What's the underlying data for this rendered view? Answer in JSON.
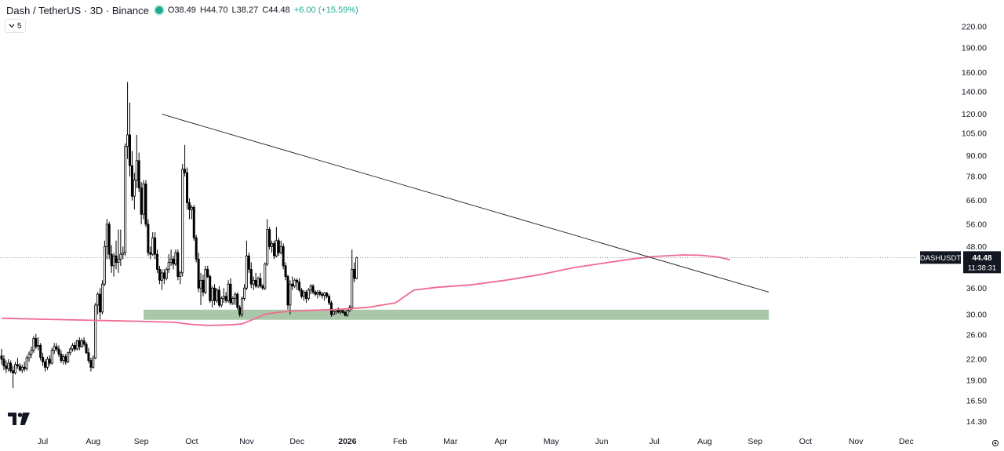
{
  "header": {
    "symbol": "Dash / TetherUS · 3D · Binance",
    "open": "O38.49",
    "high": "H44.70",
    "low": "L38.27",
    "close": "C44.48",
    "change": "+6.00 (+15.59%)",
    "status_color": "#22ab94"
  },
  "collapse_button": {
    "label": "5",
    "icon": "chevron-down-icon"
  },
  "price_label": {
    "symbol": "DASHUSDT",
    "price": "44.48",
    "countdown": "11:38:31"
  },
  "colors": {
    "up": "#ffffff",
    "down": "#000000",
    "ma": "#f06a8e",
    "support_zone": "#9bbd9a",
    "trendline": "#1e1e1e"
  },
  "chart_data": {
    "type": "candlestick",
    "y_scale": "log",
    "ylim": [
      13.2,
      240
    ],
    "y_ticks": [
      "14.30",
      "16.50",
      "19.00",
      "22.00",
      "26.00",
      "30.00",
      "36.00",
      "48.00",
      "56.00",
      "66.00",
      "78.00",
      "90.00",
      "105.00",
      "120.00",
      "140.00",
      "160.00",
      "190.00",
      "220.00"
    ],
    "x_ticks": [
      "Jul",
      "Aug",
      "Sep",
      "Oct",
      "Nov",
      "Dec",
      "2026",
      "Feb",
      "Mar",
      "Apr",
      "May",
      "Jun",
      "Jul",
      "Aug",
      "Sep",
      "Oct",
      "Nov",
      "Dec"
    ],
    "x_tick_index": [
      18,
      40,
      61,
      83,
      107,
      129,
      151,
      174,
      196,
      218,
      240,
      262,
      285,
      307,
      329,
      351,
      373,
      395
    ],
    "candles": [
      [
        22.5,
        23.6,
        21.2,
        22.0
      ],
      [
        22.0,
        22.6,
        20.4,
        21.0
      ],
      [
        21.0,
        21.8,
        20.0,
        20.6
      ],
      [
        20.6,
        22.0,
        20.2,
        21.4
      ],
      [
        21.4,
        21.8,
        20.0,
        20.3
      ],
      [
        20.3,
        21.0,
        18.0,
        20.0
      ],
      [
        20.0,
        21.6,
        19.8,
        21.2
      ],
      [
        21.2,
        22.2,
        20.6,
        21.0
      ],
      [
        21.0,
        21.4,
        20.2,
        20.4
      ],
      [
        20.4,
        21.2,
        20.0,
        20.8
      ],
      [
        20.8,
        21.6,
        20.2,
        20.6
      ],
      [
        20.6,
        22.5,
        20.3,
        22.2
      ],
      [
        22.2,
        23.2,
        21.6,
        22.8
      ],
      [
        22.8,
        24.0,
        22.2,
        23.4
      ],
      [
        23.4,
        25.8,
        23.0,
        25.4
      ],
      [
        25.4,
        26.2,
        23.6,
        24.0
      ],
      [
        24.0,
        25.6,
        23.4,
        24.2
      ],
      [
        24.2,
        24.6,
        21.8,
        22.3
      ],
      [
        22.3,
        23.0,
        21.0,
        21.6
      ],
      [
        21.6,
        22.0,
        20.2,
        20.8
      ],
      [
        20.8,
        22.4,
        20.4,
        22.0
      ],
      [
        22.0,
        22.6,
        21.0,
        21.4
      ],
      [
        21.4,
        23.8,
        21.2,
        23.4
      ],
      [
        23.4,
        24.6,
        22.8,
        24.0
      ],
      [
        24.0,
        24.6,
        23.2,
        23.6
      ],
      [
        23.6,
        24.2,
        22.4,
        22.8
      ],
      [
        22.8,
        23.4,
        21.4,
        21.8
      ],
      [
        21.8,
        22.8,
        21.2,
        22.4
      ],
      [
        22.4,
        22.8,
        21.2,
        21.6
      ],
      [
        21.6,
        23.2,
        21.4,
        23.0
      ],
      [
        23.0,
        24.0,
        22.6,
        23.6
      ],
      [
        23.6,
        24.6,
        23.2,
        24.2
      ],
      [
        24.2,
        24.8,
        23.2,
        23.6
      ],
      [
        23.6,
        25.2,
        23.4,
        25.0
      ],
      [
        25.0,
        25.6,
        23.4,
        24.0
      ],
      [
        24.0,
        25.4,
        23.8,
        25.0
      ],
      [
        25.0,
        25.6,
        24.0,
        24.4
      ],
      [
        24.4,
        24.8,
        22.8,
        23.0
      ],
      [
        23.0,
        23.8,
        21.4,
        21.8
      ],
      [
        21.8,
        22.2,
        20.2,
        20.8
      ],
      [
        20.8,
        22.6,
        20.6,
        22.2
      ],
      [
        22.2,
        32.5,
        22.0,
        32.0
      ],
      [
        32.0,
        35.0,
        30.0,
        34.5
      ],
      [
        34.5,
        36.0,
        29.0,
        30.5
      ],
      [
        30.5,
        38.0,
        30.0,
        37.0
      ],
      [
        37.0,
        50.0,
        36.5,
        48.0
      ],
      [
        48.0,
        58.0,
        44.0,
        56.0
      ],
      [
        56.0,
        57.0,
        44.0,
        45.5
      ],
      [
        45.5,
        48.5,
        40.0,
        42.0
      ],
      [
        42.0,
        46.0,
        39.0,
        45.0
      ],
      [
        45.0,
        50.0,
        41.0,
        43.0
      ],
      [
        43.0,
        54.0,
        40.0,
        44.0
      ],
      [
        44.0,
        54.0,
        42.0,
        45.5
      ],
      [
        45.5,
        48.0,
        44.0,
        46.0
      ],
      [
        46.0,
        98.0,
        45.0,
        96.0
      ],
      [
        96.0,
        150.0,
        88.0,
        104.0
      ],
      [
        104.0,
        130.0,
        78.0,
        84.0
      ],
      [
        84.0,
        93.0,
        66.0,
        68.0
      ],
      [
        68.0,
        80.0,
        62.0,
        76.0
      ],
      [
        76.0,
        104.0,
        72.0,
        87.0
      ],
      [
        87.0,
        92.0,
        70.0,
        72.0
      ],
      [
        72.0,
        75.0,
        56.0,
        60.0
      ],
      [
        60.0,
        76.0,
        58.0,
        74.0
      ],
      [
        74.0,
        76.0,
        55.0,
        56.0
      ],
      [
        56.0,
        58.0,
        45.0,
        46.0
      ],
      [
        46.0,
        48.0,
        44.0,
        45.5
      ],
      [
        45.5,
        53.0,
        45.0,
        51.0
      ],
      [
        51.0,
        53.0,
        44.0,
        45.5
      ],
      [
        45.5,
        47.0,
        40.0,
        41.0
      ],
      [
        41.0,
        42.0,
        37.0,
        38.0
      ],
      [
        38.0,
        41.0,
        35.5,
        40.0
      ],
      [
        40.0,
        41.0,
        37.0,
        38.5
      ],
      [
        38.5,
        41.5,
        38.0,
        41.0
      ],
      [
        41.0,
        45.5,
        40.0,
        43.0
      ],
      [
        43.0,
        47.0,
        42.0,
        44.0
      ],
      [
        44.0,
        45.0,
        41.0,
        42.5
      ],
      [
        42.5,
        47.0,
        42.0,
        46.0
      ],
      [
        46.0,
        47.0,
        38.0,
        39.0
      ],
      [
        39.0,
        40.5,
        37.0,
        40.0
      ],
      [
        40.0,
        85.0,
        39.0,
        82.0
      ],
      [
        82.0,
        97.0,
        78.0,
        80.0
      ],
      [
        80.0,
        83.0,
        62.0,
        65.0
      ],
      [
        65.0,
        67.0,
        58.0,
        62.0
      ],
      [
        62.0,
        64.0,
        58.0,
        63.0
      ],
      [
        63.0,
        64.0,
        50.0,
        51.0
      ],
      [
        51.0,
        52.0,
        43.0,
        44.0
      ],
      [
        44.0,
        46.0,
        35.0,
        36.0
      ],
      [
        36.0,
        40.0,
        32.0,
        38.0
      ],
      [
        38.0,
        39.5,
        34.0,
        35.0
      ],
      [
        35.0,
        42.0,
        34.5,
        41.0
      ],
      [
        41.0,
        42.0,
        38.5,
        39.0
      ],
      [
        39.0,
        39.5,
        32.5,
        33.0
      ],
      [
        33.0,
        36.5,
        31.5,
        36.0
      ],
      [
        36.0,
        37.0,
        32.0,
        33.0
      ],
      [
        33.0,
        36.0,
        32.5,
        35.5
      ],
      [
        35.5,
        36.5,
        31.5,
        32.0
      ],
      [
        32.0,
        34.0,
        31.5,
        33.5
      ],
      [
        33.5,
        36.0,
        32.5,
        34.0
      ],
      [
        34.0,
        35.0,
        32.5,
        33.0
      ],
      [
        33.0,
        38.0,
        32.5,
        37.0
      ],
      [
        37.0,
        38.5,
        32.0,
        32.5
      ],
      [
        32.5,
        34.0,
        32.0,
        33.5
      ],
      [
        33.5,
        35.0,
        32.0,
        34.5
      ],
      [
        34.5,
        35.0,
        31.0,
        31.5
      ],
      [
        31.5,
        32.0,
        29.5,
        30.0
      ],
      [
        30.0,
        34.0,
        29.5,
        33.5
      ],
      [
        33.5,
        37.0,
        33.0,
        36.0
      ],
      [
        36.0,
        50.0,
        35.5,
        45.0
      ],
      [
        45.0,
        46.0,
        40.0,
        41.0
      ],
      [
        41.0,
        43.0,
        36.0,
        37.0
      ],
      [
        37.0,
        39.0,
        35.5,
        38.0
      ],
      [
        38.0,
        40.0,
        36.0,
        36.5
      ],
      [
        36.5,
        39.0,
        36.0,
        38.5
      ],
      [
        38.5,
        40.0,
        36.0,
        36.5
      ],
      [
        36.5,
        37.0,
        35.5,
        36.0
      ],
      [
        36.0,
        43.0,
        35.5,
        42.5
      ],
      [
        42.5,
        58.0,
        42.0,
        54.0
      ],
      [
        54.0,
        55.0,
        47.0,
        48.0
      ],
      [
        48.0,
        50.0,
        46.0,
        49.0
      ],
      [
        49.0,
        50.0,
        44.0,
        45.0
      ],
      [
        45.0,
        55.0,
        44.5,
        50.0
      ],
      [
        50.0,
        51.0,
        45.0,
        46.0
      ],
      [
        46.0,
        50.0,
        45.5,
        48.0
      ],
      [
        48.0,
        49.0,
        41.0,
        42.0
      ],
      [
        42.0,
        43.0,
        38.0,
        39.0
      ],
      [
        39.0,
        39.5,
        31.0,
        32.0
      ],
      [
        32.0,
        38.0,
        30.0,
        37.0
      ],
      [
        37.0,
        39.0,
        35.5,
        36.5
      ],
      [
        36.5,
        38.5,
        36.0,
        38.0
      ],
      [
        38.0,
        38.5,
        35.5,
        37.5
      ],
      [
        37.5,
        38.5,
        35.0,
        35.5
      ],
      [
        35.5,
        36.0,
        33.5,
        34.0
      ],
      [
        34.0,
        35.5,
        33.0,
        35.0
      ],
      [
        35.0,
        35.5,
        32.5,
        33.5
      ],
      [
        33.5,
        36.0,
        33.0,
        35.5
      ],
      [
        35.5,
        37.0,
        34.5,
        36.5
      ],
      [
        36.5,
        37.0,
        34.5,
        35.0
      ],
      [
        35.0,
        35.5,
        34.0,
        34.5
      ],
      [
        34.5,
        35.5,
        33.5,
        35.0
      ],
      [
        35.0,
        35.5,
        34.0,
        34.5
      ],
      [
        34.5,
        35.0,
        33.5,
        34.2
      ],
      [
        34.2,
        35.0,
        33.0,
        34.8
      ],
      [
        34.8,
        35.0,
        33.5,
        34.0
      ],
      [
        34.0,
        34.5,
        32.0,
        32.5
      ],
      [
        32.5,
        33.0,
        29.5,
        30.0
      ],
      [
        30.0,
        31.0,
        29.8,
        30.6
      ],
      [
        30.6,
        31.2,
        30.0,
        31.0
      ],
      [
        31.0,
        31.5,
        30.2,
        30.5
      ],
      [
        30.5,
        31.2,
        30.0,
        30.8
      ],
      [
        30.8,
        31.0,
        30.2,
        30.4
      ],
      [
        30.4,
        30.8,
        29.6,
        29.8
      ],
      [
        29.8,
        31.0,
        29.5,
        30.8
      ],
      [
        30.8,
        32.0,
        30.5,
        31.5
      ],
      [
        31.5,
        47.0,
        31.0,
        41.0
      ],
      [
        41.0,
        43.0,
        37.5,
        38.5
      ],
      [
        38.49,
        44.7,
        38.27,
        44.48
      ]
    ],
    "ma_points": [
      [
        0,
        29.2
      ],
      [
        20,
        29.0
      ],
      [
        40,
        28.8
      ],
      [
        60,
        28.6
      ],
      [
        75,
        28.4
      ],
      [
        83,
        28.0
      ],
      [
        90,
        27.8
      ],
      [
        100,
        27.9
      ],
      [
        105,
        28.1
      ],
      [
        110,
        29.0
      ],
      [
        115,
        30.0
      ],
      [
        120,
        30.4
      ],
      [
        130,
        30.8
      ],
      [
        145,
        31.0
      ],
      [
        160,
        31.5
      ],
      [
        172,
        32.5
      ],
      [
        180,
        35.5
      ],
      [
        190,
        36.2
      ],
      [
        205,
        36.8
      ],
      [
        220,
        38.0
      ],
      [
        235,
        39.5
      ],
      [
        250,
        41.5
      ],
      [
        265,
        43.0
      ],
      [
        275,
        44.0
      ],
      [
        285,
        44.8
      ],
      [
        298,
        45.3
      ],
      [
        305,
        45.2
      ],
      [
        313,
        44.6
      ],
      [
        318,
        43.8
      ]
    ],
    "trendline": [
      [
        70,
        120.0
      ],
      [
        335,
        35.0
      ]
    ],
    "support_zone": [
      28.9,
      31.0
    ],
    "support_x_range": [
      62,
      335
    ],
    "last_price": 44.48
  }
}
